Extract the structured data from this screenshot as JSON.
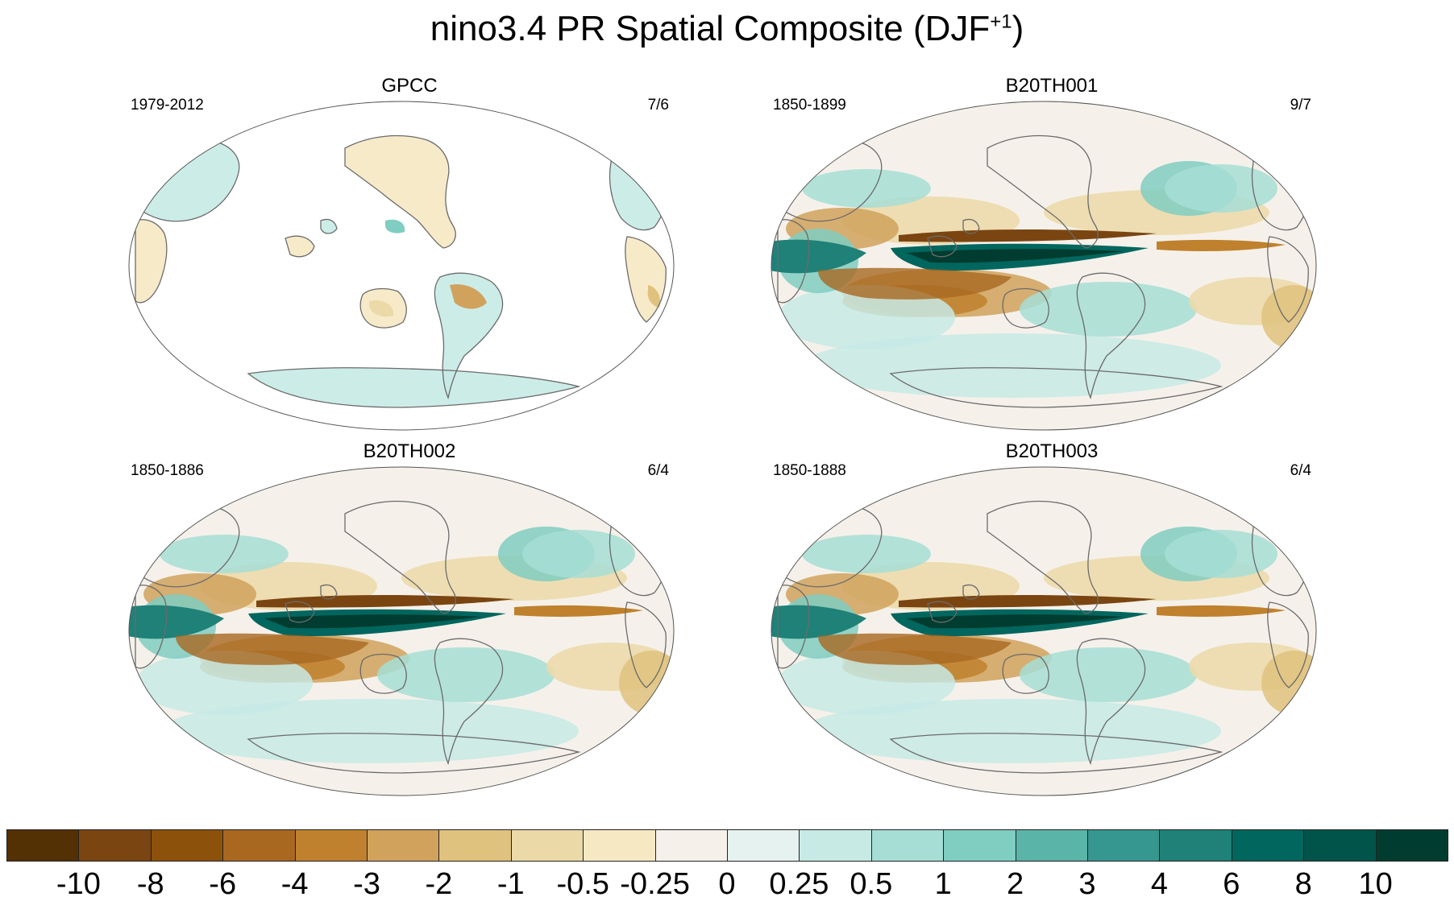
{
  "title": {
    "main": "nino3.4 PR Spatial Composite (DJF",
    "sup": "+1",
    "close": ")"
  },
  "panels": [
    {
      "name": "GPCC",
      "years": "1979-2012",
      "count": "7/6",
      "style": "obs"
    },
    {
      "name": "B20TH001",
      "years": "1850-1899",
      "count": "9/7",
      "style": "model"
    },
    {
      "name": "B20TH002",
      "years": "1850-1886",
      "count": "6/4",
      "style": "model"
    },
    {
      "name": "B20TH003",
      "years": "1850-1888",
      "count": "6/4",
      "style": "model"
    }
  ],
  "colorbar": {
    "colors": [
      "#543005",
      "#7a4511",
      "#8c510a",
      "#a86820",
      "#bf812d",
      "#d0a25c",
      "#dfc27d",
      "#ecd9a8",
      "#f6e8c3",
      "#f5f1ea",
      "#e6f2ef",
      "#c7eae5",
      "#a6ded5",
      "#80cdc1",
      "#5ab4a7",
      "#35978f",
      "#1f8178",
      "#01665e",
      "#00544a",
      "#003c30"
    ],
    "labels": [
      "-10",
      "-8",
      "-6",
      "-4",
      "-3",
      "-2",
      "-1",
      "-0.5",
      "-0.25",
      "0",
      "0.25",
      "0.5",
      "1",
      "2",
      "3",
      "4",
      "6",
      "8",
      "10"
    ]
  }
}
